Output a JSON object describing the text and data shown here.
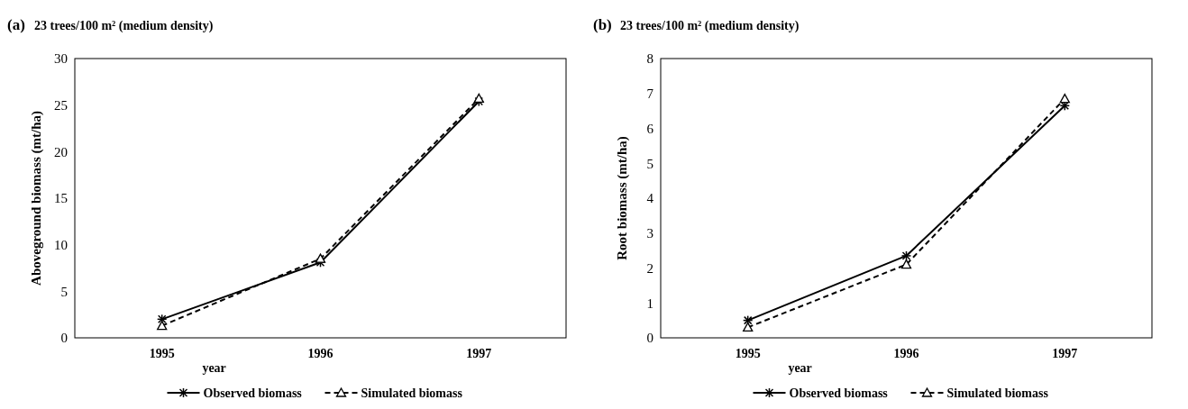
{
  "chart_data": [
    {
      "type": "line",
      "title": "(a)",
      "subtitle": "23 trees/100 m² (medium density)",
      "xlabel": "year",
      "ylabel": "Aboveground biomass (mt/ha)",
      "categories": [
        "1995",
        "1996",
        "1997"
      ],
      "ylim": [
        0,
        30
      ],
      "yticks": [
        0,
        5,
        10,
        15,
        20,
        25,
        30
      ],
      "grid": false,
      "legend": "bottom",
      "series": [
        {
          "name": "Observed biomass",
          "color": "#000000",
          "values": [
            2.0,
            8.1,
            25.4
          ],
          "marker": "cross",
          "line_style": "solid"
        },
        {
          "name": "Simulated biomass",
          "color": "#000000",
          "values": [
            1.3,
            8.5,
            25.7
          ],
          "marker": "triangle",
          "line_style": "dashed"
        }
      ]
    },
    {
      "type": "line",
      "title": "(b)",
      "subtitle": "23 trees/100 m² (medium density)",
      "xlabel": "year",
      "ylabel": "Root biomass (mt/ha)",
      "categories": [
        "1995",
        "1996",
        "1997"
      ],
      "ylim": [
        0,
        8
      ],
      "yticks": [
        0,
        1,
        2,
        3,
        4,
        5,
        6,
        7,
        8
      ],
      "grid": false,
      "legend": "bottom",
      "series": [
        {
          "name": "Observed biomass",
          "color": "#000000",
          "values": [
            0.5,
            2.35,
            6.65
          ],
          "marker": "cross",
          "line_style": "solid"
        },
        {
          "name": "Simulated biomass",
          "color": "#000000",
          "values": [
            0.3,
            2.1,
            6.85
          ],
          "marker": "triangle",
          "line_style": "dashed"
        }
      ]
    }
  ]
}
